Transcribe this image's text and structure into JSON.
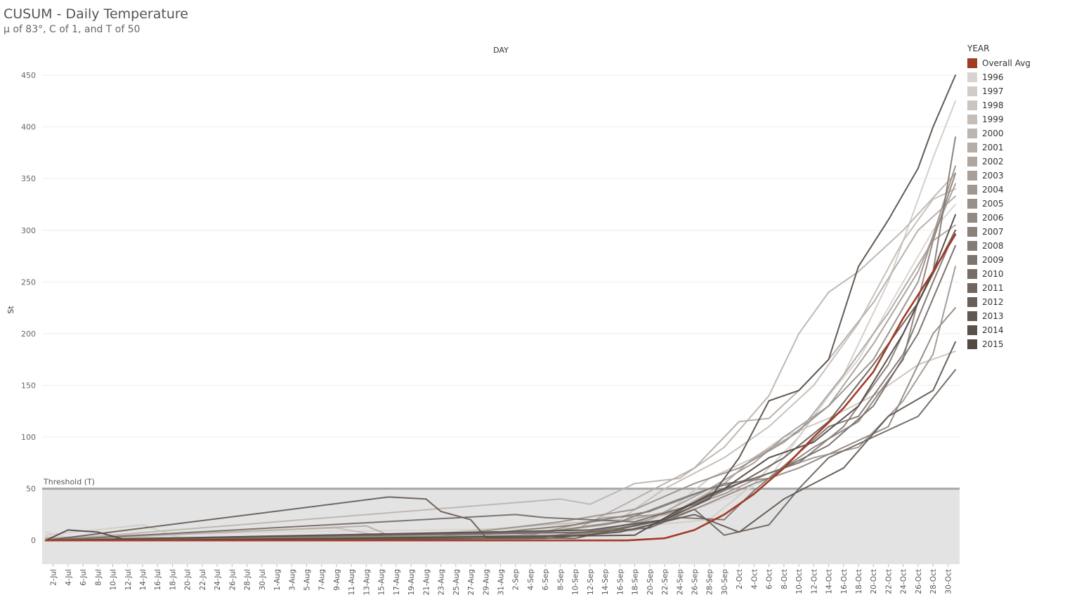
{
  "title": "CUSUM - Daily Temperature",
  "subtitle": "μ of 83°, C of 1, and T of 50",
  "chart_data": {
    "type": "line",
    "title": "CUSUM - Daily Temperature",
    "subtitle": "μ of 83°, C of 1, and T of 50",
    "column_header": "DAY",
    "xlabel": "",
    "ylabel": "St",
    "ylim": [
      -23,
      465
    ],
    "yticks": [
      0,
      50,
      100,
      150,
      200,
      250,
      300,
      350,
      400,
      450
    ],
    "x_start": "1-Jul",
    "x_end": "31-Oct",
    "x_ticks": [
      "2-Jul",
      "4-Jul",
      "6-Jul",
      "8-Jul",
      "10-Jul",
      "12-Jul",
      "14-Jul",
      "16-Jul",
      "18-Jul",
      "20-Jul",
      "22-Jul",
      "24-Jul",
      "26-Jul",
      "28-Jul",
      "30-Jul",
      "1-Aug",
      "3-Aug",
      "5-Aug",
      "7-Aug",
      "9-Aug",
      "11-Aug",
      "13-Aug",
      "15-Aug",
      "17-Aug",
      "19-Aug",
      "21-Aug",
      "23-Aug",
      "25-Aug",
      "27-Aug",
      "29-Aug",
      "31-Aug",
      "2-Sep",
      "4-Sep",
      "6-Sep",
      "8-Sep",
      "10-Sep",
      "12-Sep",
      "14-Sep",
      "16-Sep",
      "18-Sep",
      "20-Sep",
      "22-Sep",
      "24-Sep",
      "26-Sep",
      "28-Sep",
      "30-Sep",
      "2-Oct",
      "4-Oct",
      "6-Oct",
      "8-Oct",
      "10-Oct",
      "12-Oct",
      "14-Oct",
      "16-Oct",
      "18-Oct",
      "20-Oct",
      "22-Oct",
      "24-Oct",
      "26-Oct",
      "28-Oct",
      "30-Oct"
    ],
    "threshold": {
      "label": "Threshold (T)",
      "value": 50
    },
    "legend": {
      "title": "YEAR",
      "position": "right"
    },
    "grid": true,
    "series": [
      {
        "name": "Overall Avg",
        "color": "#a23b26",
        "points": [
          [
            "1-Jul",
            0
          ],
          [
            "17-Sep",
            0
          ],
          [
            "22-Sep",
            2
          ],
          [
            "26-Sep",
            10
          ],
          [
            "30-Sep",
            25
          ],
          [
            "4-Oct",
            45
          ],
          [
            "8-Oct",
            70
          ],
          [
            "12-Oct",
            100
          ],
          [
            "16-Oct",
            128
          ],
          [
            "20-Oct",
            163
          ],
          [
            "24-Oct",
            215
          ],
          [
            "28-Oct",
            260
          ],
          [
            "31-Oct",
            296
          ]
        ]
      },
      {
        "name": "1996",
        "color": "#d9d4d1",
        "points": [
          [
            "1-Jul",
            8
          ],
          [
            "4-Jul",
            3
          ],
          [
            "1-Aug",
            8
          ],
          [
            "10-Sep",
            12
          ],
          [
            "26-Sep",
            30
          ],
          [
            "2-Oct",
            45
          ],
          [
            "6-Oct",
            60
          ],
          [
            "10-Oct",
            100
          ],
          [
            "14-Oct",
            140
          ],
          [
            "18-Oct",
            175
          ],
          [
            "24-Oct",
            250
          ],
          [
            "28-Oct",
            300
          ],
          [
            "31-Oct",
            325
          ]
        ]
      },
      {
        "name": "1997",
        "color": "#d2ccc8",
        "points": [
          [
            "1-Jul",
            5
          ],
          [
            "14-Jul",
            15
          ],
          [
            "20-Jul",
            0
          ],
          [
            "10-Sep",
            8
          ],
          [
            "28-Sep",
            20
          ],
          [
            "4-Oct",
            55
          ],
          [
            "10-Oct",
            100
          ],
          [
            "16-Oct",
            160
          ],
          [
            "22-Oct",
            250
          ],
          [
            "28-Oct",
            370
          ],
          [
            "31-Oct",
            425
          ]
        ]
      },
      {
        "name": "1998",
        "color": "#cbc4c0",
        "points": [
          [
            "1-Jul",
            3
          ],
          [
            "28-Aug",
            2
          ],
          [
            "16-Sep",
            10
          ],
          [
            "22-Sep",
            25
          ],
          [
            "28-Sep",
            60
          ],
          [
            "4-Oct",
            80
          ],
          [
            "8-Oct",
            100
          ],
          [
            "14-Oct",
            118
          ],
          [
            "20-Oct",
            140
          ],
          [
            "26-Oct",
            170
          ],
          [
            "31-Oct",
            183
          ]
        ]
      },
      {
        "name": "1999",
        "color": "#c4bdb8",
        "points": [
          [
            "1-Jul",
            2
          ],
          [
            "9-Aug",
            12
          ],
          [
            "16-Aug",
            3
          ],
          [
            "6-Sep",
            15
          ],
          [
            "16-Sep",
            20
          ],
          [
            "22-Sep",
            50
          ],
          [
            "30-Sep",
            80
          ],
          [
            "6-Oct",
            110
          ],
          [
            "12-Oct",
            150
          ],
          [
            "18-Oct",
            210
          ],
          [
            "24-Oct",
            290
          ],
          [
            "28-Oct",
            330
          ],
          [
            "31-Oct",
            340
          ]
        ]
      },
      {
        "name": "2000",
        "color": "#bdb5b0",
        "points": [
          [
            "1-Jul",
            0
          ],
          [
            "8-Sep",
            40
          ],
          [
            "12-Sep",
            35
          ],
          [
            "18-Sep",
            55
          ],
          [
            "24-Sep",
            60
          ],
          [
            "30-Sep",
            90
          ],
          [
            "6-Oct",
            140
          ],
          [
            "10-Oct",
            200
          ],
          [
            "14-Oct",
            240
          ],
          [
            "18-Oct",
            260
          ],
          [
            "24-Oct",
            300
          ],
          [
            "31-Oct",
            355
          ]
        ]
      },
      {
        "name": "2001",
        "color": "#b6ada8",
        "points": [
          [
            "1-Jul",
            0
          ],
          [
            "13-Aug",
            14
          ],
          [
            "17-Aug",
            2
          ],
          [
            "10-Sep",
            10
          ],
          [
            "26-Sep",
            70
          ],
          [
            "2-Oct",
            115
          ],
          [
            "6-Oct",
            118
          ],
          [
            "10-Oct",
            145
          ],
          [
            "14-Oct",
            175
          ],
          [
            "20-Oct",
            230
          ],
          [
            "26-Oct",
            300
          ],
          [
            "31-Oct",
            333
          ]
        ]
      },
      {
        "name": "2002",
        "color": "#afa6a0",
        "points": [
          [
            "1-Jul",
            2
          ],
          [
            "31-Aug",
            3
          ],
          [
            "14-Sep",
            15
          ],
          [
            "24-Sep",
            30
          ],
          [
            "30-Sep",
            55
          ],
          [
            "4-Oct",
            80
          ],
          [
            "10-Oct",
            105
          ],
          [
            "16-Oct",
            160
          ],
          [
            "22-Oct",
            220
          ],
          [
            "28-Oct",
            290
          ],
          [
            "31-Oct",
            305
          ]
        ]
      },
      {
        "name": "2003",
        "color": "#a89f99",
        "points": [
          [
            "1-Jul",
            0
          ],
          [
            "10-Sep",
            5
          ],
          [
            "20-Sep",
            20
          ],
          [
            "28-Sep",
            50
          ],
          [
            "4-Oct",
            75
          ],
          [
            "8-Oct",
            100
          ],
          [
            "14-Oct",
            130
          ],
          [
            "20-Oct",
            190
          ],
          [
            "26-Oct",
            260
          ],
          [
            "31-Oct",
            345
          ]
        ]
      },
      {
        "name": "2004",
        "color": "#a19791",
        "points": [
          [
            "1-Jul",
            0
          ],
          [
            "4-Sep",
            5
          ],
          [
            "14-Sep",
            22
          ],
          [
            "22-Sep",
            25
          ],
          [
            "30-Sep",
            45
          ],
          [
            "6-Oct",
            65
          ],
          [
            "12-Oct",
            80
          ],
          [
            "18-Oct",
            90
          ],
          [
            "24-Oct",
            135
          ],
          [
            "28-Oct",
            180
          ],
          [
            "31-Oct",
            265
          ]
        ]
      },
      {
        "name": "2005",
        "color": "#9a908a",
        "points": [
          [
            "1-Jul",
            0
          ],
          [
            "23-Aug",
            4
          ],
          [
            "8-Sep",
            18
          ],
          [
            "18-Sep",
            30
          ],
          [
            "26-Sep",
            55
          ],
          [
            "2-Oct",
            70
          ],
          [
            "8-Oct",
            95
          ],
          [
            "14-Oct",
            130
          ],
          [
            "20-Oct",
            175
          ],
          [
            "26-Oct",
            250
          ],
          [
            "31-Oct",
            362
          ]
        ]
      },
      {
        "name": "2006",
        "color": "#938983",
        "points": [
          [
            "1-Jul",
            0
          ],
          [
            "2-Sep",
            2
          ],
          [
            "18-Sep",
            10
          ],
          [
            "26-Sep",
            30
          ],
          [
            "4-Oct",
            55
          ],
          [
            "10-Oct",
            70
          ],
          [
            "16-Oct",
            90
          ],
          [
            "22-Oct",
            110
          ],
          [
            "28-Oct",
            200
          ],
          [
            "31-Oct",
            225
          ]
        ]
      },
      {
        "name": "2007",
        "color": "#8c827c",
        "points": [
          [
            "1-Jul",
            0
          ],
          [
            "6-Sep",
            8
          ],
          [
            "16-Sep",
            18
          ],
          [
            "24-Sep",
            40
          ],
          [
            "30-Sep",
            55
          ],
          [
            "6-Oct",
            60
          ],
          [
            "12-Oct",
            90
          ],
          [
            "18-Oct",
            115
          ],
          [
            "24-Oct",
            175
          ],
          [
            "28-Oct",
            290
          ],
          [
            "31-Oct",
            355
          ]
        ]
      },
      {
        "name": "2008",
        "color": "#857b75",
        "points": [
          [
            "1-Jul",
            0
          ],
          [
            "31-Aug",
            8
          ],
          [
            "10-Sep",
            15
          ],
          [
            "20-Sep",
            28
          ],
          [
            "28-Sep",
            50
          ],
          [
            "4-Oct",
            60
          ],
          [
            "10-Oct",
            75
          ],
          [
            "16-Oct",
            110
          ],
          [
            "22-Oct",
            170
          ],
          [
            "28-Oct",
            260
          ],
          [
            "31-Oct",
            390
          ]
        ]
      },
      {
        "name": "2009",
        "color": "#7e746e",
        "points": [
          [
            "1-Jul",
            0
          ],
          [
            "4-Sep",
            2
          ],
          [
            "16-Sep",
            12
          ],
          [
            "24-Sep",
            22
          ],
          [
            "30-Sep",
            20
          ],
          [
            "4-Oct",
            48
          ],
          [
            "8-Oct",
            72
          ],
          [
            "14-Oct",
            110
          ],
          [
            "18-Oct",
            120
          ],
          [
            "24-Oct",
            180
          ],
          [
            "28-Oct",
            250
          ],
          [
            "31-Oct",
            300
          ]
        ]
      },
      {
        "name": "2010",
        "color": "#776d67",
        "points": [
          [
            "1-Jul",
            0
          ],
          [
            "2-Sep",
            25
          ],
          [
            "6-Sep",
            22
          ],
          [
            "18-Sep",
            18
          ],
          [
            "26-Sep",
            35
          ],
          [
            "2-Oct",
            55
          ],
          [
            "8-Oct",
            70
          ],
          [
            "14-Oct",
            92
          ],
          [
            "20-Oct",
            130
          ],
          [
            "26-Oct",
            200
          ],
          [
            "31-Oct",
            285
          ]
        ]
      },
      {
        "name": "2011",
        "color": "#706660",
        "points": [
          [
            "1-Jul",
            0
          ],
          [
            "12-Sep",
            8
          ],
          [
            "20-Sep",
            12
          ],
          [
            "26-Sep",
            30
          ],
          [
            "30-Sep",
            5
          ],
          [
            "6-Oct",
            15
          ],
          [
            "10-Oct",
            50
          ],
          [
            "14-Oct",
            80
          ],
          [
            "20-Oct",
            100
          ],
          [
            "26-Oct",
            120
          ],
          [
            "31-Oct",
            165
          ]
        ]
      },
      {
        "name": "2012",
        "color": "#695f59",
        "points": [
          [
            "1-Jul",
            0
          ],
          [
            "16-Aug",
            42
          ],
          [
            "21-Aug",
            40
          ],
          [
            "23-Aug",
            28
          ],
          [
            "27-Aug",
            20
          ],
          [
            "29-Aug",
            3
          ],
          [
            "10-Sep",
            2
          ],
          [
            "22-Sep",
            20
          ],
          [
            "28-Sep",
            45
          ],
          [
            "2-Oct",
            55
          ],
          [
            "8-Oct",
            80
          ],
          [
            "14-Oct",
            115
          ],
          [
            "20-Oct",
            170
          ],
          [
            "26-Oct",
            230
          ],
          [
            "31-Oct",
            300
          ]
        ]
      },
      {
        "name": "2013",
        "color": "#625852",
        "points": [
          [
            "1-Jul",
            0
          ],
          [
            "6-Sep",
            2
          ],
          [
            "16-Sep",
            8
          ],
          [
            "26-Sep",
            25
          ],
          [
            "2-Oct",
            8
          ],
          [
            "8-Oct",
            40
          ],
          [
            "12-Oct",
            55
          ],
          [
            "16-Oct",
            70
          ],
          [
            "22-Oct",
            120
          ],
          [
            "28-Oct",
            145
          ],
          [
            "31-Oct",
            192
          ]
        ]
      },
      {
        "name": "2014",
        "color": "#5b514b",
        "points": [
          [
            "1-Jul",
            0
          ],
          [
            "12-Sep",
            10
          ],
          [
            "22-Sep",
            20
          ],
          [
            "28-Sep",
            40
          ],
          [
            "2-Oct",
            80
          ],
          [
            "6-Oct",
            135
          ],
          [
            "10-Oct",
            145
          ],
          [
            "14-Oct",
            175
          ],
          [
            "18-Oct",
            265
          ],
          [
            "22-Oct",
            310
          ],
          [
            "26-Oct",
            360
          ],
          [
            "28-Oct",
            400
          ],
          [
            "31-Oct",
            450
          ]
        ]
      },
      {
        "name": "2015",
        "color": "#544a44",
        "points": [
          [
            "1-Jul",
            0
          ],
          [
            "4-Jul",
            10
          ],
          [
            "8-Jul",
            8
          ],
          [
            "12-Jul",
            0
          ],
          [
            "18-Sep",
            5
          ],
          [
            "24-Sep",
            30
          ],
          [
            "30-Sep",
            50
          ],
          [
            "6-Oct",
            80
          ],
          [
            "12-Oct",
            95
          ],
          [
            "18-Oct",
            130
          ],
          [
            "24-Oct",
            200
          ],
          [
            "28-Oct",
            260
          ],
          [
            "31-Oct",
            315
          ]
        ]
      }
    ]
  }
}
